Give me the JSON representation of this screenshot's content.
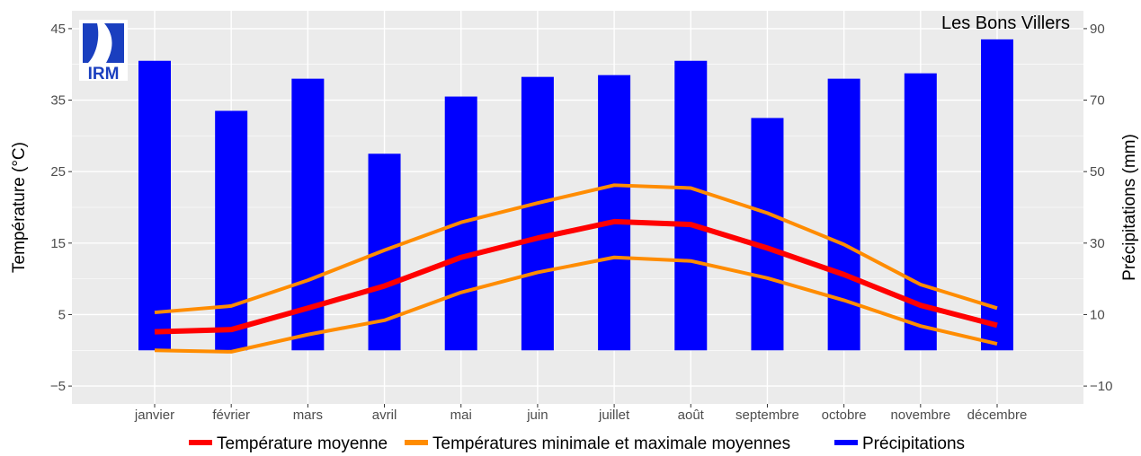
{
  "chart_data": {
    "type": "bar",
    "place": "Les Bons Villers",
    "logo_text": "IRM",
    "categories": [
      "janvier",
      "février",
      "mars",
      "avril",
      "mai",
      "juin",
      "juillet",
      "août",
      "septembre",
      "octobre",
      "novembre",
      "décembre"
    ],
    "y_left": {
      "label": "Température (°C)",
      "ylim": [
        -7.5,
        47.5
      ],
      "ticks": [
        -5,
        5,
        15,
        25,
        35,
        45
      ],
      "tick_labels": [
        "−5",
        "5",
        "15",
        "25",
        "35",
        "45"
      ]
    },
    "y_right": {
      "label": "Précipitations (mm)",
      "ylim": [
        -15,
        95
      ],
      "ticks": [
        -10,
        10,
        30,
        50,
        70,
        90
      ],
      "tick_labels": [
        "−10",
        "10",
        "30",
        "50",
        "70",
        "90"
      ]
    },
    "series": [
      {
        "name": "Précipitations",
        "kind": "bar",
        "axis": "right",
        "color": "#0000ff",
        "values": [
          81,
          67,
          76,
          55,
          71,
          76.5,
          77,
          81,
          65,
          76,
          77.5,
          87
        ]
      },
      {
        "name": "Température moyenne",
        "kind": "line",
        "axis": "left",
        "color": "#ff0000",
        "values": [
          2.6,
          2.9,
          5.9,
          9.0,
          13.0,
          15.7,
          18.0,
          17.6,
          14.3,
          10.6,
          6.3,
          3.5
        ]
      },
      {
        "name": "Températures minimale et maximale moyennes",
        "kind": "line-band",
        "axis": "left",
        "color": "#ff8c00",
        "min_values": [
          0.0,
          -0.2,
          2.2,
          4.2,
          8.1,
          10.9,
          13.0,
          12.5,
          10.1,
          7.0,
          3.4,
          0.9
        ],
        "max_values": [
          5.3,
          6.2,
          9.8,
          14.0,
          17.9,
          20.6,
          23.1,
          22.7,
          19.2,
          14.8,
          9.2,
          5.9
        ]
      }
    ],
    "legend": [
      {
        "label": "Température moyenne",
        "color": "#ff0000"
      },
      {
        "label": "Températures minimale et maximale moyennes",
        "color": "#ff8c00"
      },
      {
        "label": "Précipitations",
        "color": "#0000ff"
      }
    ],
    "legend_position": "bottom",
    "grid": true,
    "panel_background": "#ebebeb",
    "grid_color": "#ffffff"
  }
}
